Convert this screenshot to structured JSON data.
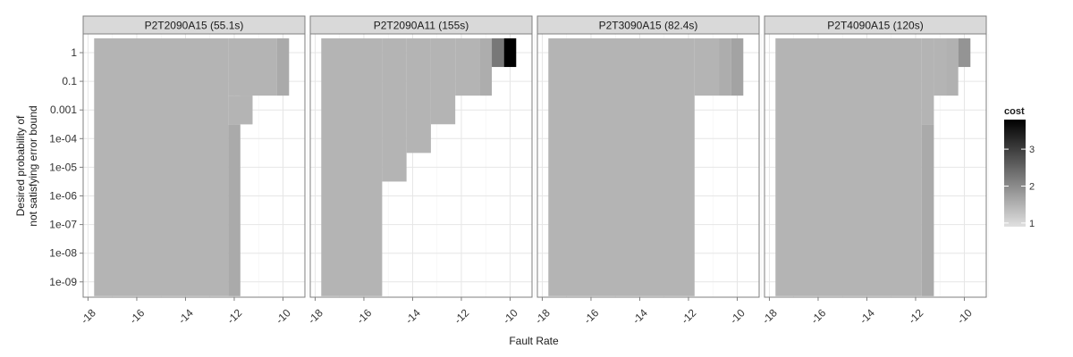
{
  "chart_data": {
    "type": "heatmap",
    "xlabel": "Fault Rate",
    "ylabel_lines": [
      "Desired probability of",
      "not satisfying error bound"
    ],
    "x_ticks": [
      -18,
      -16,
      -14,
      -12,
      -10
    ],
    "x_tick_labels": [
      "-18",
      "-16",
      "-14",
      "-12",
      "-10"
    ],
    "y_levels": [
      "1e-09",
      "1e-08",
      "1e-07",
      "1e-06",
      "1e-05",
      "1e-04",
      "0.001",
      "0.1",
      "1"
    ],
    "grid": true,
    "legend": {
      "title": "cost",
      "placement": "right",
      "range": [
        0.9,
        3.8
      ],
      "ticks": [
        1,
        2,
        3
      ],
      "tick_labels": [
        "1",
        "2",
        "3"
      ],
      "low_color": "#e0e0e0",
      "high_color": "#000000"
    },
    "panels": [
      {
        "title": "P2T2090A15 (55.1s)",
        "cells": [
          {
            "x0": -17.75,
            "x1": -12.25,
            "y0": "1e-09",
            "y1": "1",
            "cost": 1.25
          },
          {
            "x0": -12.25,
            "x1": -11.75,
            "y0": "1e-09",
            "y1": "1e-04",
            "cost": 1.4
          },
          {
            "x0": -12.25,
            "x1": -11.25,
            "y0": "0.001",
            "y1": "0.001",
            "cost": 1.25
          },
          {
            "x0": -11.75,
            "x1": -11.25,
            "y0": "0.001",
            "y1": "0.001",
            "cost": 1.25
          },
          {
            "x0": -12.25,
            "x1": -10.25,
            "y0": "0.1",
            "y1": "1",
            "cost": 1.25
          },
          {
            "x0": -10.25,
            "x1": -9.75,
            "y0": "0.1",
            "y1": "1",
            "cost": 1.4
          }
        ]
      },
      {
        "title": "P2T2090A11 (155s)",
        "cells": [
          {
            "x0": -17.75,
            "x1": -15.25,
            "y0": "1e-09",
            "y1": "1",
            "cost": 1.25
          },
          {
            "x0": -15.25,
            "x1": -14.25,
            "y0": "1e-05",
            "y1": "1",
            "cost": 1.25
          },
          {
            "x0": -14.25,
            "x1": -13.25,
            "y0": "1e-04",
            "y1": "1",
            "cost": 1.25
          },
          {
            "x0": -13.25,
            "x1": -12.25,
            "y0": "0.001",
            "y1": "1",
            "cost": 1.25
          },
          {
            "x0": -12.25,
            "x1": -11.25,
            "y0": "0.1",
            "y1": "1",
            "cost": 1.25
          },
          {
            "x0": -11.25,
            "x1": -10.75,
            "y0": "0.1",
            "y1": "1",
            "cost": 1.35
          },
          {
            "x0": -10.75,
            "x1": -10.25,
            "y0": "1",
            "y1": "1",
            "cost": 2.1
          },
          {
            "x0": -10.25,
            "x1": -9.75,
            "y0": "1",
            "y1": "1",
            "cost": 3.8
          }
        ]
      },
      {
        "title": "P2T3090A15 (82.4s)",
        "cells": [
          {
            "x0": -17.75,
            "x1": -11.75,
            "y0": "1e-09",
            "y1": "1",
            "cost": 1.25
          },
          {
            "x0": -11.75,
            "x1": -10.75,
            "y0": "0.1",
            "y1": "1",
            "cost": 1.25
          },
          {
            "x0": -10.75,
            "x1": -10.25,
            "y0": "0.1",
            "y1": "1",
            "cost": 1.35
          },
          {
            "x0": -10.25,
            "x1": -9.75,
            "y0": "0.1",
            "y1": "1",
            "cost": 1.5
          }
        ]
      },
      {
        "title": "P2T4090A15 (120s)",
        "cells": [
          {
            "x0": -17.75,
            "x1": -11.75,
            "y0": "1e-09",
            "y1": "1",
            "cost": 1.25
          },
          {
            "x0": -11.75,
            "x1": -11.25,
            "y0": "1e-09",
            "y1": "1e-04",
            "cost": 1.4
          },
          {
            "x0": -11.75,
            "x1": -11.25,
            "y0": "0.001",
            "y1": "1",
            "cost": 1.25
          },
          {
            "x0": -11.25,
            "x1": -10.75,
            "y0": "0.1",
            "y1": "1",
            "cost": 1.25
          },
          {
            "x0": -10.75,
            "x1": -10.25,
            "y0": "0.1",
            "y1": "1",
            "cost": 1.3
          },
          {
            "x0": -10.25,
            "x1": -9.75,
            "y0": "1",
            "y1": "1",
            "cost": 1.7
          }
        ]
      }
    ]
  }
}
